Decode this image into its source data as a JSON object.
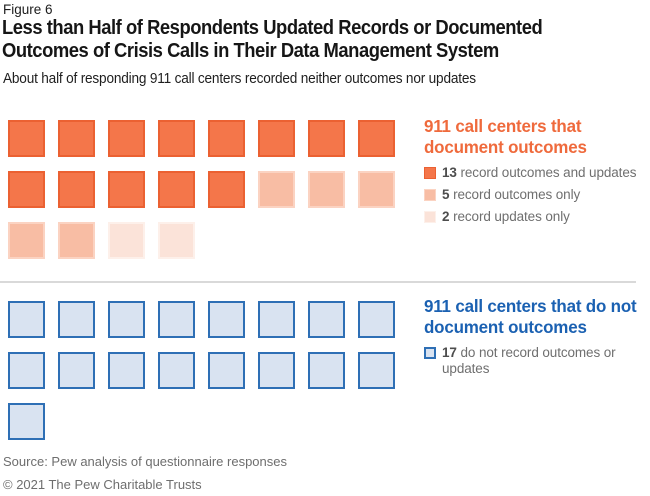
{
  "header": {
    "figure_label": "Figure 6",
    "title_lines": [
      "Less than Half of Respondents Updated Records or Documented",
      "Outcomes of Crisis Calls in Their Data Management System"
    ],
    "subtitle": "About half of responding 911 call centers recorded neither outcomes nor updates"
  },
  "chart_data": {
    "type": "waffle",
    "title": "Less than Half of Respondents Updated Records or Documented Outcomes of Crisis Calls in Their Data Management System",
    "subtitle": "About half of responding 911 call centers recorded neither outcomes nor updates",
    "unit": "911 call centers",
    "columns_per_row": 8,
    "total_units": 37,
    "groups": [
      {
        "heading": "911 call centers that document outcomes",
        "heading_color": "#EF6A3C",
        "items": [
          {
            "num": "13",
            "label": "record outcomes and updates",
            "value": 13,
            "fill": "#F4764A",
            "border": "#EB6132"
          },
          {
            "num": "5",
            "label": "record outcomes only",
            "value": 5,
            "fill": "#F8BDA4",
            "border": "#FBD3C2"
          },
          {
            "num": "2",
            "label": "record updates only",
            "value": 2,
            "fill": "#FBE3D9",
            "border": "#FDF0EA"
          }
        ]
      },
      {
        "heading": "911 call centers that do not document outcomes",
        "heading_color": "#1B61B2",
        "items": [
          {
            "num": "17",
            "label": "do not record outcomes or updates",
            "value": 17,
            "fill": "#D9E3F1",
            "border": "#2E6FB5"
          }
        ]
      }
    ]
  },
  "footer": {
    "source": "Source: Pew analysis of questionnaire responses",
    "copyright": "© 2021 The Pew Charitable Trusts"
  },
  "colors": {
    "divider": "#D9D9D9",
    "footer_text": "#6E6E6E",
    "title_text": "#161616"
  }
}
